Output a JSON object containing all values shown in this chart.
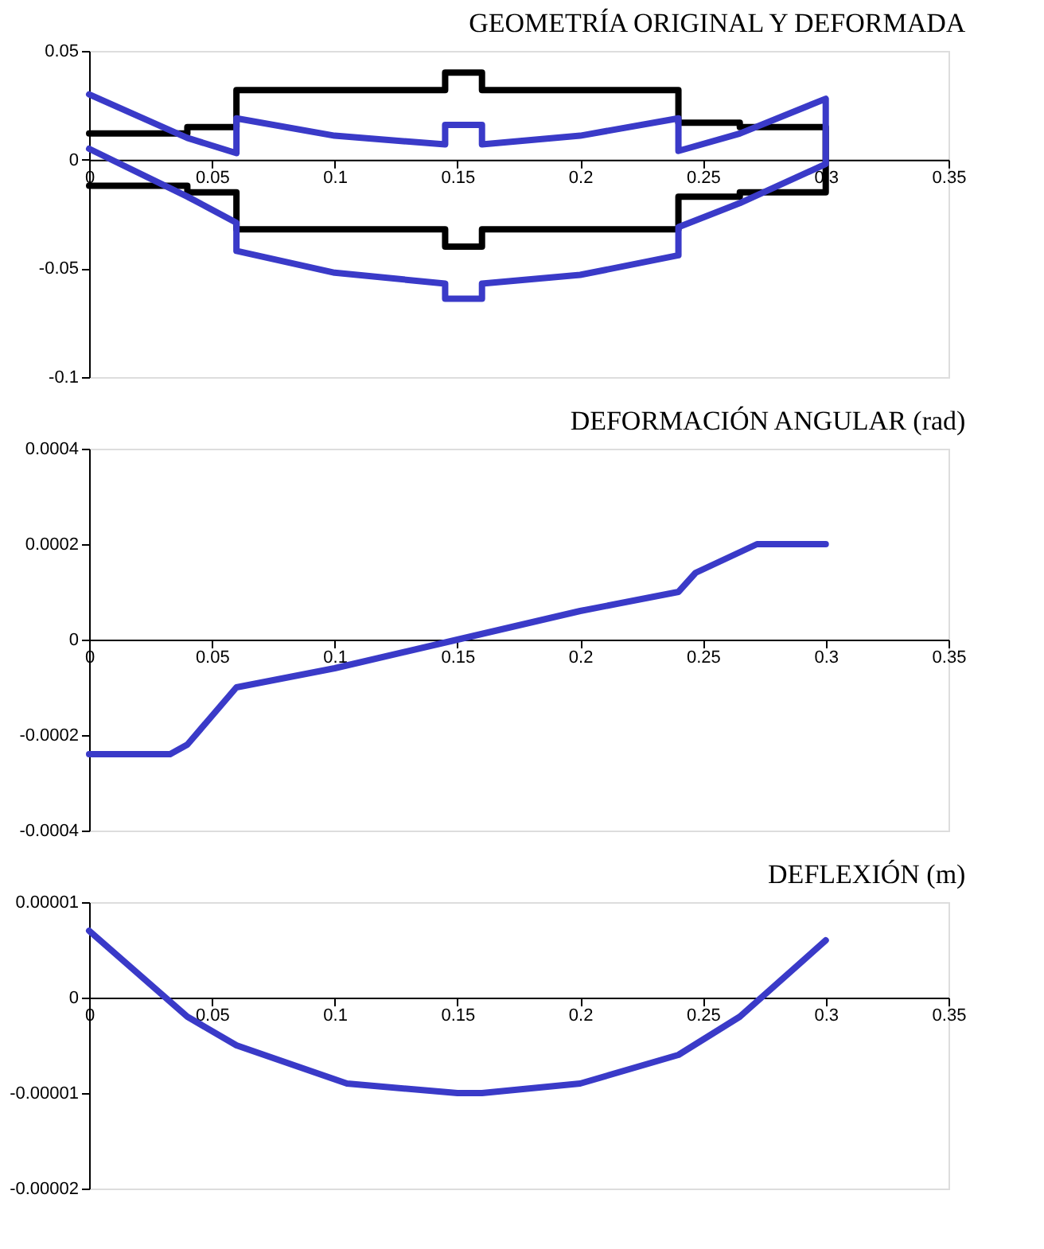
{
  "chart_data": [
    {
      "type": "line",
      "title": "GEOMETRÍA ORIGINAL Y DEFORMADA",
      "xlim": [
        0,
        0.35
      ],
      "xticks": [
        0,
        0.05,
        0.1,
        0.15,
        0.2,
        0.25,
        0.3,
        0.35
      ],
      "ylim": [
        -0.1,
        0.05
      ],
      "yticks": [
        -0.1,
        -0.05,
        0,
        0.05
      ],
      "grid": false,
      "series": [
        {
          "color": "#000000",
          "x": [
            0,
            0.04,
            0.04,
            0.06,
            0.06,
            0.145,
            0.145,
            0.16,
            0.16,
            0.24,
            0.24,
            0.265,
            0.265,
            0.3,
            0.3,
            0.265,
            0.265,
            0.24,
            0.24,
            0.16,
            0.16,
            0.145,
            0.145,
            0.06,
            0.06,
            0.04,
            0.04,
            0
          ],
          "values": [
            0.012,
            0.012,
            0.015,
            0.015,
            0.032,
            0.032,
            0.04,
            0.04,
            0.032,
            0.032,
            0.017,
            0.017,
            0.015,
            0.015,
            -0.015,
            -0.015,
            -0.017,
            -0.017,
            -0.032,
            -0.032,
            -0.04,
            -0.04,
            -0.032,
            -0.032,
            -0.015,
            -0.015,
            -0.012,
            -0.012
          ]
        },
        {
          "color": "#3a3ac8",
          "x": [
            0,
            0.04,
            0.06,
            0.06,
            0.1,
            0.145,
            0.145,
            0.16,
            0.16,
            0.2,
            0.24,
            0.24,
            0.265,
            0.3,
            0.3,
            0.265,
            0.24,
            0.24,
            0.2,
            0.16,
            0.16,
            0.145,
            0.145,
            0.1,
            0.06,
            0.06,
            0.04,
            0
          ],
          "values": [
            0.03,
            0.01,
            0.003,
            0.019,
            0.011,
            0.007,
            0.016,
            0.016,
            0.007,
            0.011,
            0.019,
            0.004,
            0.012,
            0.028,
            -0.002,
            -0.02,
            -0.031,
            -0.044,
            -0.053,
            -0.057,
            -0.064,
            -0.064,
            -0.057,
            -0.052,
            -0.042,
            -0.029,
            -0.017,
            0.005
          ]
        }
      ]
    },
    {
      "type": "line",
      "title": "DEFORMACIÓN ANGULAR (rad)",
      "xlim": [
        0,
        0.35
      ],
      "xticks": [
        0,
        0.05,
        0.1,
        0.15,
        0.2,
        0.25,
        0.3,
        0.35
      ],
      "ylim": [
        -0.0004,
        0.0004
      ],
      "yticks": [
        -0.0004,
        -0.0002,
        0,
        0.0002,
        0.0004
      ],
      "grid": false,
      "series": [
        {
          "color": "#3a3ac8",
          "x": [
            0,
            0.033,
            0.04,
            0.06,
            0.1,
            0.15,
            0.2,
            0.24,
            0.247,
            0.272,
            0.3
          ],
          "values": [
            -0.00024,
            -0.00024,
            -0.00022,
            -0.0001,
            -6e-05,
            0,
            6e-05,
            0.0001,
            0.00014,
            0.0002,
            0.0002
          ]
        }
      ]
    },
    {
      "type": "line",
      "title": "DEFLEXIÓN (m)",
      "xlim": [
        0,
        0.35
      ],
      "xticks": [
        0,
        0.05,
        0.1,
        0.15,
        0.2,
        0.25,
        0.3,
        0.35
      ],
      "ylim": [
        -2e-05,
        1e-05
      ],
      "yticks": [
        {
          "value": -2e-05,
          "label": "-0.00002"
        },
        {
          "value": -1e-05,
          "label": "-0.00001"
        },
        0,
        {
          "value": 1e-05,
          "label": "0.00001"
        }
      ],
      "grid": false,
      "series": [
        {
          "color": "#3a3ac8",
          "x": [
            0,
            0.04,
            0.06,
            0.105,
            0.15,
            0.16,
            0.2,
            0.24,
            0.265,
            0.3
          ],
          "values": [
            7e-06,
            -2e-06,
            -5e-06,
            -9e-06,
            -1e-05,
            -1e-05,
            -9e-06,
            -6e-06,
            -2e-06,
            6e-06
          ]
        }
      ]
    }
  ]
}
